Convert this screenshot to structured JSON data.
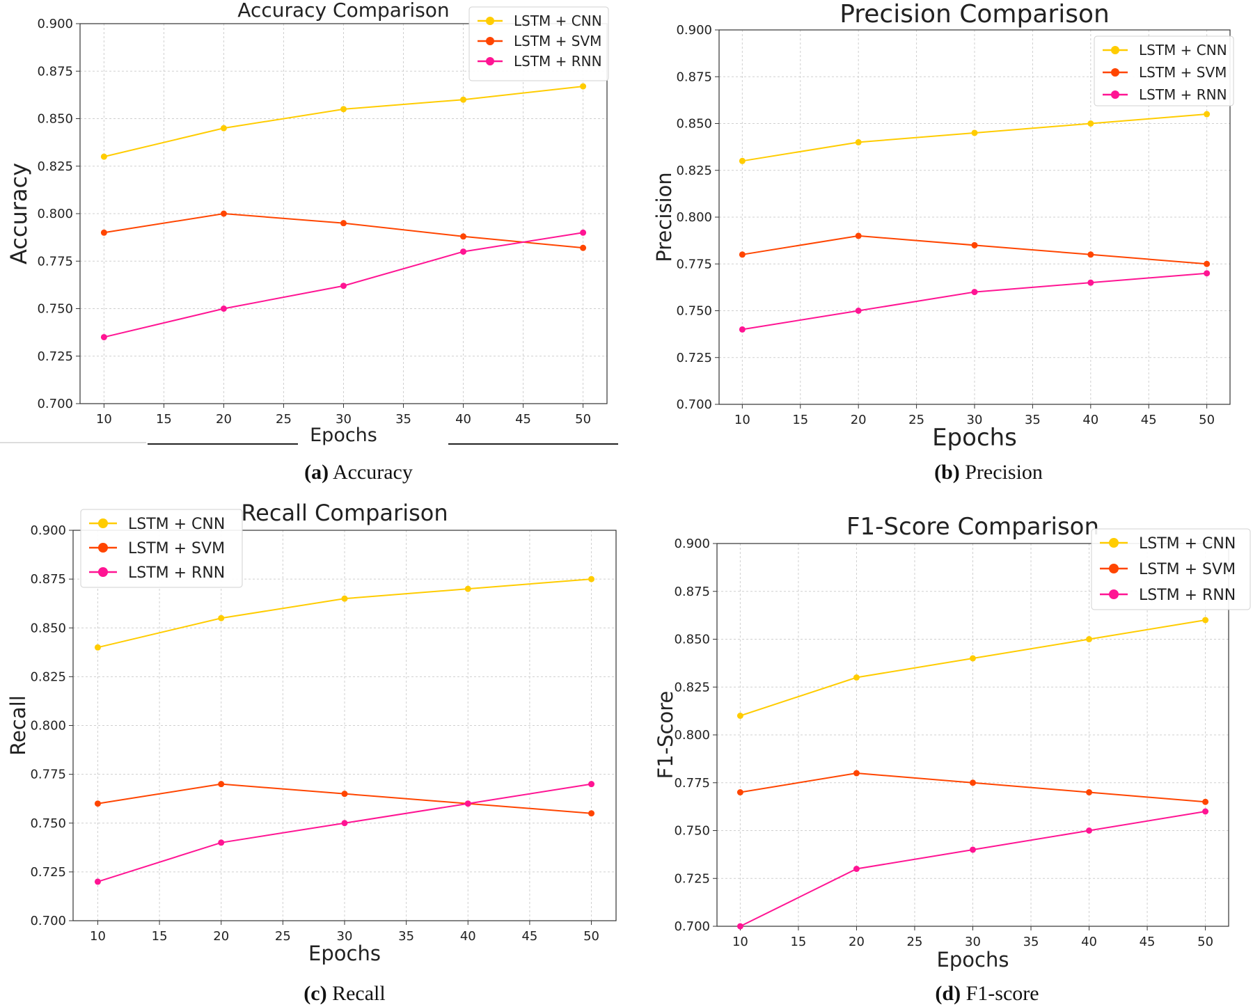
{
  "figure": {
    "captions": [
      {
        "letter": "(a)",
        "text": " Accuracy"
      },
      {
        "letter": "(b)",
        "text": " Precision"
      },
      {
        "letter": "(c)",
        "text": " Recall"
      },
      {
        "letter": "(d)",
        "text": " F1-score"
      }
    ]
  },
  "chart_data": [
    {
      "type": "line",
      "title": "Accuracy Comparison",
      "xlabel": "Epochs",
      "ylabel": "Accuracy",
      "x": [
        10,
        20,
        30,
        40,
        50
      ],
      "xticks": [
        "10",
        "15",
        "20",
        "25",
        "30",
        "35",
        "40",
        "45",
        "50"
      ],
      "yticks": [
        "0.700",
        "0.725",
        "0.750",
        "0.775",
        "0.800",
        "0.825",
        "0.850",
        "0.875",
        "0.900"
      ],
      "xlim": [
        8,
        52
      ],
      "ylim": [
        0.7,
        0.9
      ],
      "grid": true,
      "legend": "top-right",
      "series": [
        {
          "name": "LSTM + CNN",
          "color": "#FFCC00",
          "values": [
            0.83,
            0.845,
            0.855,
            0.86,
            0.867
          ]
        },
        {
          "name": "LSTM + SVM",
          "color": "#FF4500",
          "values": [
            0.79,
            0.8,
            0.795,
            0.788,
            0.782
          ]
        },
        {
          "name": "LSTM + RNN",
          "color": "#FF1493",
          "values": [
            0.735,
            0.75,
            0.762,
            0.78,
            0.79
          ]
        }
      ]
    },
    {
      "type": "line",
      "title": "Precision Comparison",
      "xlabel": "Epochs",
      "ylabel": "Precision",
      "x": [
        10,
        20,
        30,
        40,
        50
      ],
      "xticks": [
        "10",
        "15",
        "20",
        "25",
        "30",
        "35",
        "40",
        "45",
        "50"
      ],
      "yticks": [
        "0.700",
        "0.725",
        "0.750",
        "0.775",
        "0.800",
        "0.825",
        "0.850",
        "0.875",
        "0.900"
      ],
      "xlim": [
        8,
        52
      ],
      "ylim": [
        0.7,
        0.9
      ],
      "grid": true,
      "legend": "top-right",
      "series": [
        {
          "name": "LSTM + CNN",
          "color": "#FFCC00",
          "values": [
            0.83,
            0.84,
            0.845,
            0.85,
            0.855
          ]
        },
        {
          "name": "LSTM + SVM",
          "color": "#FF4500",
          "values": [
            0.78,
            0.79,
            0.785,
            0.78,
            0.775
          ]
        },
        {
          "name": "LSTM + RNN",
          "color": "#FF1493",
          "values": [
            0.74,
            0.75,
            0.76,
            0.765,
            0.77
          ]
        }
      ]
    },
    {
      "type": "line",
      "title": "Recall Comparison",
      "xlabel": "Epochs",
      "ylabel": "Recall",
      "x": [
        10,
        20,
        30,
        40,
        50
      ],
      "xticks": [
        "10",
        "15",
        "20",
        "25",
        "30",
        "35",
        "40",
        "45",
        "50"
      ],
      "yticks": [
        "0.700",
        "0.725",
        "0.750",
        "0.775",
        "0.800",
        "0.825",
        "0.850",
        "0.875",
        "0.900"
      ],
      "xlim": [
        8,
        52
      ],
      "ylim": [
        0.7,
        0.9
      ],
      "grid": true,
      "legend": "top-left",
      "series": [
        {
          "name": "LSTM + CNN",
          "color": "#FFCC00",
          "values": [
            0.84,
            0.855,
            0.865,
            0.87,
            0.875
          ]
        },
        {
          "name": "LSTM + SVM",
          "color": "#FF4500",
          "values": [
            0.76,
            0.77,
            0.765,
            0.76,
            0.755
          ]
        },
        {
          "name": "LSTM + RNN",
          "color": "#FF1493",
          "values": [
            0.72,
            0.74,
            0.75,
            0.76,
            0.77
          ]
        }
      ]
    },
    {
      "type": "line",
      "title": "F1-Score Comparison",
      "xlabel": "Epochs",
      "ylabel": "F1-Score",
      "x": [
        10,
        20,
        30,
        40,
        50
      ],
      "xticks": [
        "10",
        "15",
        "20",
        "25",
        "30",
        "35",
        "40",
        "45",
        "50"
      ],
      "yticks": [
        "0.700",
        "0.725",
        "0.750",
        "0.775",
        "0.800",
        "0.825",
        "0.850",
        "0.875",
        "0.900"
      ],
      "xlim": [
        8,
        52
      ],
      "ylim": [
        0.7,
        0.9
      ],
      "grid": true,
      "legend": "top-right",
      "series": [
        {
          "name": "LSTM + CNN",
          "color": "#FFCC00",
          "values": [
            0.81,
            0.83,
            0.84,
            0.85,
            0.86
          ]
        },
        {
          "name": "LSTM + SVM",
          "color": "#FF4500",
          "values": [
            0.77,
            0.78,
            0.775,
            0.77,
            0.765
          ]
        },
        {
          "name": "LSTM + RNN",
          "color": "#FF1493",
          "values": [
            0.7,
            0.73,
            0.74,
            0.75,
            0.76
          ]
        }
      ]
    }
  ]
}
